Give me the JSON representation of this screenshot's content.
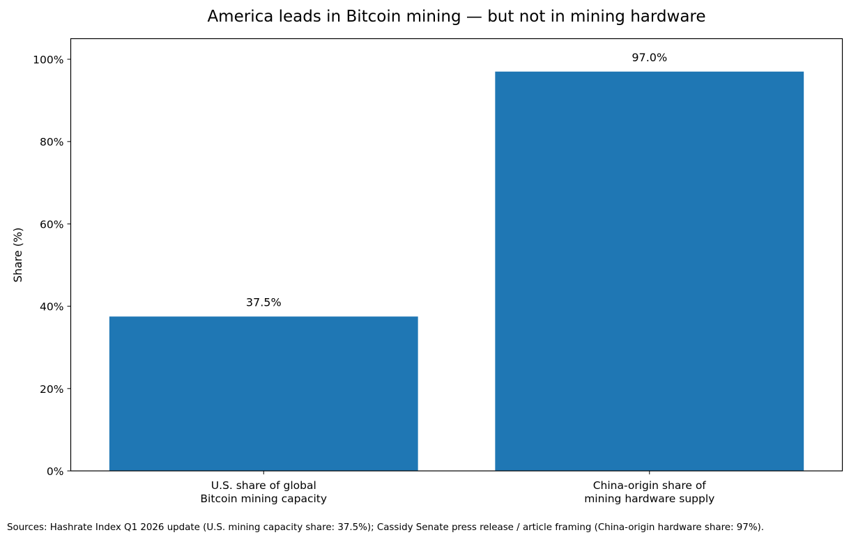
{
  "chart_data": {
    "type": "bar",
    "title": "America leads in Bitcoin mining — but not in mining hardware",
    "xlabel": "",
    "ylabel": "Share (%)",
    "categories": [
      [
        "U.S. share of global",
        "Bitcoin mining capacity"
      ],
      [
        "China-origin share of",
        "mining hardware supply"
      ]
    ],
    "values": [
      37.5,
      97.0
    ],
    "data_labels": [
      "37.5%",
      "97.0%"
    ],
    "ylim": [
      0,
      105
    ],
    "yticks": [
      0,
      20,
      40,
      60,
      80,
      100
    ],
    "ytick_labels": [
      "0%",
      "20%",
      "40%",
      "60%",
      "80%",
      "100%"
    ],
    "bar_color": "#1f77b4",
    "grid": false,
    "legend": "none"
  },
  "footnote": "Sources: Hashrate Index Q1 2026 update (U.S. mining capacity share: 37.5%); Cassidy Senate press release / article framing (China-origin hardware share: 97%)."
}
